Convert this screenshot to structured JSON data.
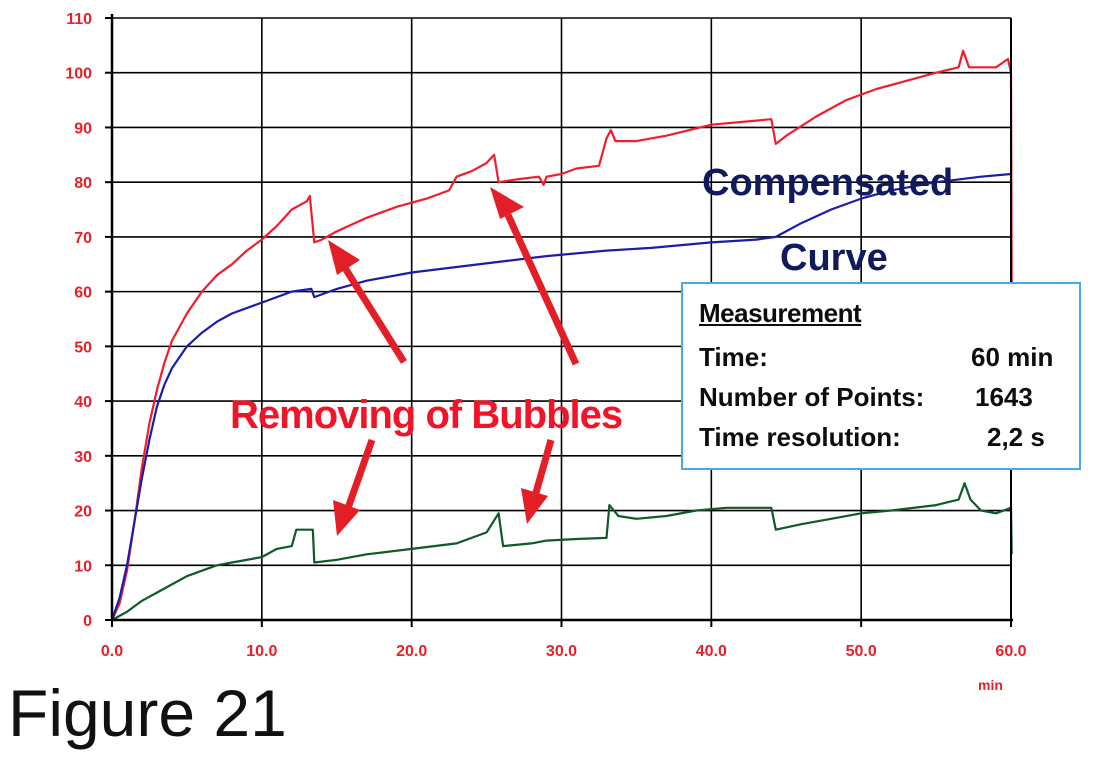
{
  "figure": {
    "title": "Figure 21"
  },
  "measurement_box": {
    "heading": "Measurement",
    "rows": [
      {
        "label": "Time:",
        "value": "60 min"
      },
      {
        "label": "Number of Points:",
        "value": "1643"
      },
      {
        "label": "Time resolution:",
        "value": "2,2 s"
      }
    ]
  },
  "annotations": {
    "compensated": "Compensated",
    "curve": "Curve",
    "removing_bubbles": "Removing of Bubbles"
  },
  "colors": {
    "raw_curve": "#f01e2c",
    "compensated_curve": "#1c1ca8",
    "lower_curve": "#0e5a2a",
    "axis_labels": "#e8202a",
    "arrows": "#e41e26",
    "info_border": "#49a8e8",
    "grid": "#000000"
  },
  "chart_data": {
    "type": "line",
    "x_unit": "min",
    "xlim": [
      0,
      60
    ],
    "ylim": [
      0,
      110
    ],
    "x_ticks": [
      "0.0",
      "10.0",
      "20.0",
      "30.0",
      "40.0",
      "50.0",
      "60.0"
    ],
    "y_ticks": [
      "0",
      "10",
      "20",
      "30",
      "40",
      "50",
      "60",
      "70",
      "80",
      "90",
      "100",
      "110"
    ],
    "grid": true,
    "series": [
      {
        "color": "#f01e2c",
        "points": [
          [
            0,
            0
          ],
          [
            0.5,
            3
          ],
          [
            1,
            9
          ],
          [
            1.5,
            18
          ],
          [
            2,
            28
          ],
          [
            2.5,
            36
          ],
          [
            3,
            42
          ],
          [
            3.5,
            47
          ],
          [
            4,
            51
          ],
          [
            5,
            56
          ],
          [
            6,
            60
          ],
          [
            7,
            63
          ],
          [
            8,
            65
          ],
          [
            9,
            67.5
          ],
          [
            10,
            69.5
          ],
          [
            11,
            72
          ],
          [
            12,
            75
          ],
          [
            13,
            76.5
          ],
          [
            13.2,
            77.5
          ],
          [
            13.5,
            69
          ],
          [
            14,
            69.5
          ],
          [
            15,
            71
          ],
          [
            17,
            73.5
          ],
          [
            19,
            75.5
          ],
          [
            21,
            77
          ],
          [
            22.5,
            78.5
          ],
          [
            23,
            81
          ],
          [
            24,
            82
          ],
          [
            25,
            83.5
          ],
          [
            25.5,
            85
          ],
          [
            25.8,
            80
          ],
          [
            27,
            80.5
          ],
          [
            28.5,
            81
          ],
          [
            28.8,
            79.5
          ],
          [
            29,
            81
          ],
          [
            30,
            81.5
          ],
          [
            31,
            82.5
          ],
          [
            32.5,
            83
          ],
          [
            33,
            88
          ],
          [
            33.3,
            89.5
          ],
          [
            33.6,
            87.5
          ],
          [
            35,
            87.5
          ],
          [
            37,
            88.5
          ],
          [
            38.5,
            89.5
          ],
          [
            40,
            90.5
          ],
          [
            42,
            91
          ],
          [
            44,
            91.5
          ],
          [
            44.3,
            87
          ],
          [
            45,
            88.5
          ],
          [
            47,
            92
          ],
          [
            49,
            95
          ],
          [
            51,
            97
          ],
          [
            53,
            98.5
          ],
          [
            55,
            100
          ],
          [
            56.5,
            101
          ],
          [
            56.8,
            104
          ],
          [
            57.2,
            101
          ],
          [
            59,
            101
          ],
          [
            59.8,
            102.5
          ],
          [
            60,
            100
          ],
          [
            60.05,
            60
          ]
        ]
      },
      {
        "color": "#1c1ca8",
        "points": [
          [
            0,
            0
          ],
          [
            0.5,
            4
          ],
          [
            1,
            10
          ],
          [
            1.5,
            18
          ],
          [
            2,
            26
          ],
          [
            2.5,
            33
          ],
          [
            3,
            39
          ],
          [
            3.5,
            43
          ],
          [
            4,
            46
          ],
          [
            5,
            50
          ],
          [
            6,
            52.5
          ],
          [
            7,
            54.5
          ],
          [
            8,
            56
          ],
          [
            10,
            58
          ],
          [
            12,
            60
          ],
          [
            13.3,
            60.5
          ],
          [
            13.5,
            59
          ],
          [
            15,
            60.5
          ],
          [
            17,
            62
          ],
          [
            20,
            63.5
          ],
          [
            23,
            64.5
          ],
          [
            26,
            65.5
          ],
          [
            29,
            66.5
          ],
          [
            33,
            67.5
          ],
          [
            36,
            68
          ],
          [
            40,
            69
          ],
          [
            43,
            69.5
          ],
          [
            44.3,
            70
          ],
          [
            46,
            72.5
          ],
          [
            48,
            75
          ],
          [
            50,
            77
          ],
          [
            52,
            78.5
          ],
          [
            55,
            80
          ],
          [
            58,
            81
          ],
          [
            60,
            81.5
          ]
        ]
      },
      {
        "color": "#0e5a2a",
        "points": [
          [
            0,
            0
          ],
          [
            1,
            1.5
          ],
          [
            2,
            3.5
          ],
          [
            3,
            5
          ],
          [
            4,
            6.5
          ],
          [
            5,
            8
          ],
          [
            6,
            9
          ],
          [
            7,
            10
          ],
          [
            8,
            10.5
          ],
          [
            10,
            11.5
          ],
          [
            11,
            13
          ],
          [
            12,
            13.5
          ],
          [
            12.3,
            16.5
          ],
          [
            13.4,
            16.5
          ],
          [
            13.5,
            10.5
          ],
          [
            15,
            11
          ],
          [
            17,
            12
          ],
          [
            20,
            13
          ],
          [
            23,
            14
          ],
          [
            25,
            16
          ],
          [
            25.8,
            19.5
          ],
          [
            26.1,
            13.5
          ],
          [
            28,
            14
          ],
          [
            29,
            14.5
          ],
          [
            31,
            14.8
          ],
          [
            33,
            15
          ],
          [
            33.2,
            21
          ],
          [
            33.8,
            19
          ],
          [
            35,
            18.5
          ],
          [
            37,
            19
          ],
          [
            39,
            20
          ],
          [
            41,
            20.5
          ],
          [
            44,
            20.5
          ],
          [
            44.3,
            16.5
          ],
          [
            46,
            17.5
          ],
          [
            48,
            18.5
          ],
          [
            50,
            19.5
          ],
          [
            52,
            20
          ],
          [
            55,
            21
          ],
          [
            56.5,
            22
          ],
          [
            56.9,
            25
          ],
          [
            57.3,
            22
          ],
          [
            58,
            20
          ],
          [
            59,
            19.5
          ],
          [
            60,
            20.5
          ],
          [
            60.05,
            12
          ]
        ]
      }
    ]
  }
}
